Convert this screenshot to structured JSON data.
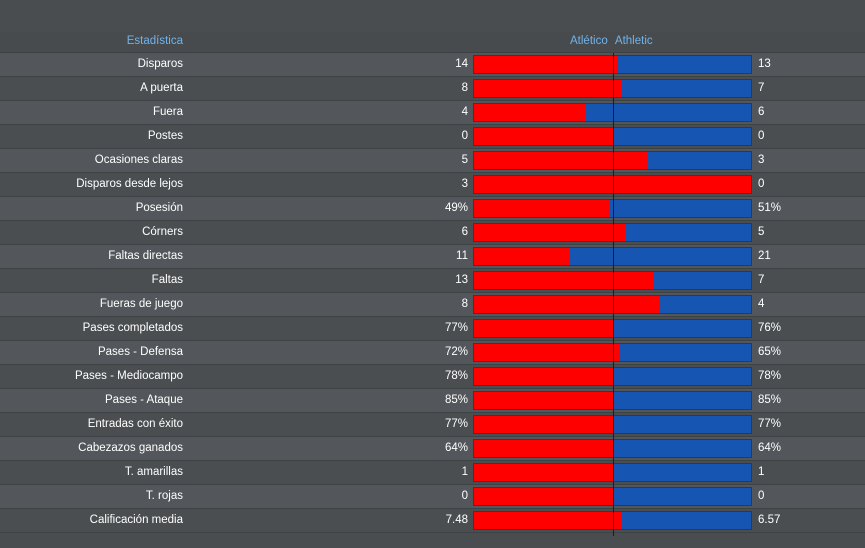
{
  "header": {
    "stat_label": "Estadística",
    "home_team": "Atlético",
    "away_team": "Athletic"
  },
  "colors": {
    "home": "#ff0000",
    "away": "#1755b3",
    "header_text": "#6fb3ea",
    "background": "#4a4d50"
  },
  "stats": [
    {
      "label": "Disparos",
      "home": "14",
      "away": "13",
      "home_share": 0.52
    },
    {
      "label": "A puerta",
      "home": "8",
      "away": "7",
      "home_share": 0.53
    },
    {
      "label": "Fuera",
      "home": "4",
      "away": "6",
      "home_share": 0.4
    },
    {
      "label": "Postes",
      "home": "0",
      "away": "0",
      "home_share": 0.5
    },
    {
      "label": "Ocasiones claras",
      "home": "5",
      "away": "3",
      "home_share": 0.625
    },
    {
      "label": "Disparos desde lejos",
      "home": "3",
      "away": "0",
      "home_share": 1.0
    },
    {
      "label": "Posesión",
      "home": "49%",
      "away": "51%",
      "home_share": 0.49
    },
    {
      "label": "Córners",
      "home": "6",
      "away": "5",
      "home_share": 0.545
    },
    {
      "label": "Faltas directas",
      "home": "11",
      "away": "21",
      "home_share": 0.344
    },
    {
      "label": "Faltas",
      "home": "13",
      "away": "7",
      "home_share": 0.65
    },
    {
      "label": "Fueras de juego",
      "home": "8",
      "away": "4",
      "home_share": 0.667
    },
    {
      "label": "Pases completados",
      "home": "77%",
      "away": "76%",
      "home_share": 0.503
    },
    {
      "label": "Pases - Defensa",
      "home": "72%",
      "away": "65%",
      "home_share": 0.526
    },
    {
      "label": "Pases - Mediocampo",
      "home": "78%",
      "away": "78%",
      "home_share": 0.5
    },
    {
      "label": "Pases - Ataque",
      "home": "85%",
      "away": "85%",
      "home_share": 0.5
    },
    {
      "label": "Entradas con éxito",
      "home": "77%",
      "away": "77%",
      "home_share": 0.5
    },
    {
      "label": "Cabezazos ganados",
      "home": "64%",
      "away": "64%",
      "home_share": 0.5
    },
    {
      "label": "T. amarillas",
      "home": "1",
      "away": "1",
      "home_share": 0.5
    },
    {
      "label": "T. rojas",
      "home": "0",
      "away": "0",
      "home_share": 0.5
    },
    {
      "label": "Calificación media",
      "home": "7.48",
      "away": "6.57",
      "home_share": 0.532
    }
  ]
}
